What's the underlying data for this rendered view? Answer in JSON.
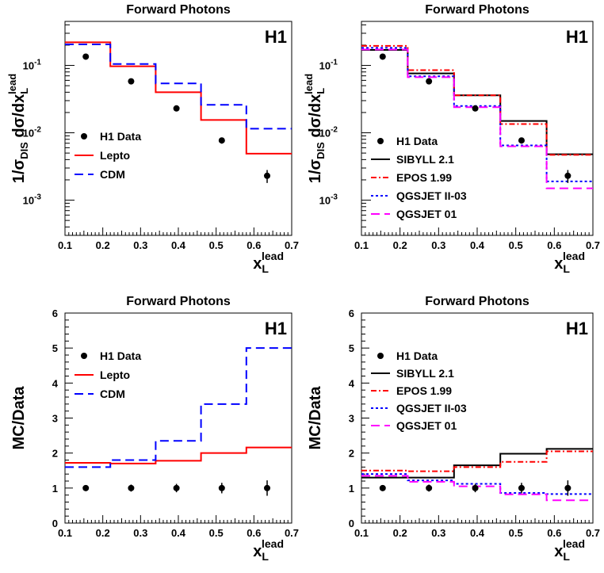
{
  "chart_data": [
    {
      "type": "line",
      "title": "Forward Photons",
      "badge": "H1",
      "xlabel": "x",
      "xlabel_sub": "L",
      "xlabel_sup": "lead",
      "ylabel": "1/σDIS dσ/dxLlead",
      "ylabel_parts": {
        "pre": "1/σ",
        "sub1": "DIS",
        "mid": " dσ/dx",
        "sub2": "L",
        "sup2": "lead"
      },
      "xlim": [
        0.1,
        0.7
      ],
      "ylim": [
        0.0003,
        0.45
      ],
      "yscale": "log",
      "x_ticks": [
        "0.1",
        "0.2",
        "0.3",
        "0.4",
        "0.5",
        "0.6",
        "0.7"
      ],
      "y_ticks": [
        {
          "value": 0.1,
          "base": "10",
          "exp": "-1"
        },
        {
          "value": 0.01,
          "base": "10",
          "exp": "-2"
        },
        {
          "value": 0.001,
          "base": "10",
          "exp": "-3"
        }
      ],
      "bin_edges": [
        0.1,
        0.22,
        0.34,
        0.46,
        0.58,
        0.7
      ],
      "legend_position": "center-left",
      "data_points": {
        "name": "H1 Data",
        "x": [
          0.155,
          0.275,
          0.395,
          0.515,
          0.635
        ],
        "y": [
          0.135,
          0.058,
          0.023,
          0.0077,
          0.0023
        ],
        "err": [
          0.01,
          0.004,
          0.002,
          0.0008,
          0.0005
        ]
      },
      "series": [
        {
          "name": "Lepto",
          "color": "#ff0000",
          "dash": "solid",
          "values": [
            0.22,
            0.097,
            0.04,
            0.0155,
            0.0049
          ]
        },
        {
          "name": "CDM",
          "color": "#0000ff",
          "dash": "longdash",
          "values": [
            0.205,
            0.105,
            0.054,
            0.026,
            0.0115
          ]
        }
      ]
    },
    {
      "type": "line",
      "title": "Forward Photons",
      "badge": "H1",
      "xlabel": "x",
      "xlabel_sub": "L",
      "xlabel_sup": "lead",
      "ylabel": "1/σDIS dσ/dxLlead",
      "ylabel_parts": {
        "pre": "1/σ",
        "sub1": "DIS",
        "mid": " dσ/dx",
        "sub2": "L",
        "sup2": "lead"
      },
      "xlim": [
        0.1,
        0.7
      ],
      "ylim": [
        0.0003,
        0.45
      ],
      "yscale": "log",
      "x_ticks": [
        "0.1",
        "0.2",
        "0.3",
        "0.4",
        "0.5",
        "0.6",
        "0.7"
      ],
      "y_ticks": [
        {
          "value": 0.1,
          "base": "10",
          "exp": "-1"
        },
        {
          "value": 0.01,
          "base": "10",
          "exp": "-2"
        },
        {
          "value": 0.001,
          "base": "10",
          "exp": "-3"
        }
      ],
      "bin_edges": [
        0.1,
        0.22,
        0.34,
        0.46,
        0.58,
        0.7
      ],
      "legend_position": "bottom-left",
      "data_points": {
        "name": "H1 Data",
        "x": [
          0.155,
          0.275,
          0.395,
          0.515,
          0.635
        ],
        "y": [
          0.135,
          0.058,
          0.023,
          0.0077,
          0.0023
        ],
        "err": [
          0.01,
          0.004,
          0.002,
          0.0008,
          0.0005
        ]
      },
      "series": [
        {
          "name": "SIBYLL 2.1",
          "color": "#000000",
          "dash": "solid",
          "values": [
            0.17,
            0.076,
            0.036,
            0.015,
            0.0048
          ]
        },
        {
          "name": "EPOS 1.99",
          "color": "#ff0000",
          "dash": "dashdot",
          "values": [
            0.195,
            0.085,
            0.036,
            0.0135,
            0.0047
          ]
        },
        {
          "name": "QGSJET II-03",
          "color": "#0000ff",
          "dash": "dotted",
          "values": [
            0.182,
            0.069,
            0.025,
            0.0065,
            0.0019
          ]
        },
        {
          "name": "QGSJET 01",
          "color": "#ff00ff",
          "dash": "longdash",
          "values": [
            0.172,
            0.067,
            0.024,
            0.0063,
            0.0015
          ]
        }
      ]
    },
    {
      "type": "line",
      "title": "Forward Photons",
      "badge": "H1",
      "xlabel": "x",
      "xlabel_sub": "L",
      "xlabel_sup": "lead",
      "ylabel": "MC/Data",
      "xlim": [
        0.1,
        0.7
      ],
      "ylim": [
        0,
        6
      ],
      "yscale": "linear",
      "x_ticks": [
        "0.1",
        "0.2",
        "0.3",
        "0.4",
        "0.5",
        "0.6",
        "0.7"
      ],
      "y_ticks": [
        {
          "value": 0,
          "label": "0"
        },
        {
          "value": 1,
          "label": "1"
        },
        {
          "value": 2,
          "label": "2"
        },
        {
          "value": 3,
          "label": "3"
        },
        {
          "value": 4,
          "label": "4"
        },
        {
          "value": 5,
          "label": "5"
        },
        {
          "value": 6,
          "label": "6"
        }
      ],
      "bin_edges": [
        0.1,
        0.22,
        0.34,
        0.46,
        0.58,
        0.7
      ],
      "legend_position": "top-left",
      "data_points": {
        "name": "H1 Data",
        "x": [
          0.155,
          0.275,
          0.395,
          0.515,
          0.635
        ],
        "y": [
          1,
          1,
          1,
          1,
          1
        ],
        "err": [
          0.08,
          0.1,
          0.12,
          0.15,
          0.22
        ]
      },
      "series": [
        {
          "name": "Lepto",
          "color": "#ff0000",
          "dash": "solid",
          "values": [
            1.72,
            1.7,
            1.78,
            2.0,
            2.16
          ]
        },
        {
          "name": "CDM",
          "color": "#0000ff",
          "dash": "longdash",
          "values": [
            1.6,
            1.8,
            2.35,
            3.4,
            5.0
          ]
        }
      ]
    },
    {
      "type": "line",
      "title": "Forward Photons",
      "badge": "H1",
      "xlabel": "x",
      "xlabel_sub": "L",
      "xlabel_sup": "lead",
      "ylabel": "MC/Data",
      "xlim": [
        0.1,
        0.7
      ],
      "ylim": [
        0,
        6
      ],
      "yscale": "linear",
      "x_ticks": [
        "0.1",
        "0.2",
        "0.3",
        "0.4",
        "0.5",
        "0.6",
        "0.7"
      ],
      "y_ticks": [
        {
          "value": 0,
          "label": "0"
        },
        {
          "value": 1,
          "label": "1"
        },
        {
          "value": 2,
          "label": "2"
        },
        {
          "value": 3,
          "label": "3"
        },
        {
          "value": 4,
          "label": "4"
        },
        {
          "value": 5,
          "label": "5"
        },
        {
          "value": 6,
          "label": "6"
        }
      ],
      "bin_edges": [
        0.1,
        0.22,
        0.34,
        0.46,
        0.58,
        0.7
      ],
      "legend_position": "top-left",
      "data_points": {
        "name": "H1 Data",
        "x": [
          0.155,
          0.275,
          0.395,
          0.515,
          0.635
        ],
        "y": [
          1,
          1,
          1,
          1,
          1
        ],
        "err": [
          0.08,
          0.1,
          0.12,
          0.15,
          0.22
        ]
      },
      "series": [
        {
          "name": "SIBYLL 2.1",
          "color": "#000000",
          "dash": "solid",
          "values": [
            1.3,
            1.3,
            1.65,
            1.98,
            2.12
          ]
        },
        {
          "name": "EPOS 1.99",
          "color": "#ff0000",
          "dash": "dashdot",
          "values": [
            1.5,
            1.48,
            1.6,
            1.75,
            2.05
          ]
        },
        {
          "name": "QGSJET II-03",
          "color": "#0000ff",
          "dash": "dotted",
          "values": [
            1.4,
            1.22,
            1.12,
            0.86,
            0.83
          ]
        },
        {
          "name": "QGSJET 01",
          "color": "#ff00ff",
          "dash": "longdash",
          "values": [
            1.35,
            1.18,
            1.05,
            0.82,
            0.65
          ]
        }
      ]
    }
  ]
}
